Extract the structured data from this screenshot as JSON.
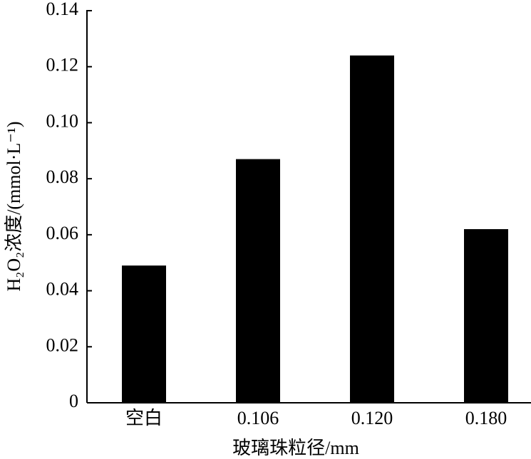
{
  "chart_data": {
    "type": "bar",
    "x_label": "玻璃珠粒径/mm",
    "y_label": "H₂O₂浓度/(mmol·L⁻¹)",
    "categories": [
      "空白",
      "0.106",
      "0.120",
      "0.180"
    ],
    "values": [
      0.049,
      0.087,
      0.124,
      0.062
    ],
    "color": "#000000",
    "ylim": [
      0,
      0.14
    ],
    "yticks": [
      0,
      0.02,
      0.04,
      0.06,
      0.08,
      {
        "value": 0.1,
        "label": "0.10"
      },
      0.12,
      0.14
    ]
  }
}
